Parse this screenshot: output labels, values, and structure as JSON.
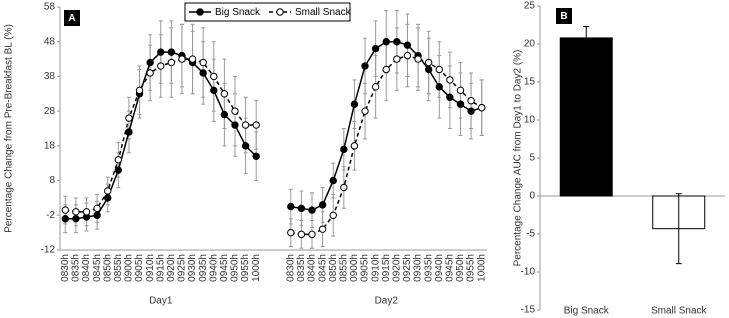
{
  "chart_data": [
    {
      "type": "line",
      "panel": "A",
      "ylabel": "Percentage Change from Pre-Breakfast BL  (%)",
      "ylim": [
        -12,
        58
      ],
      "yticks": [
        -12,
        -2,
        8,
        18,
        28,
        38,
        48,
        58
      ],
      "legend": "top",
      "groups": [
        {
          "label": "Day1",
          "categories": [
            "0830h",
            "0835h",
            "0840h",
            "0845h",
            "0850h",
            "0855h",
            "0900h",
            "0905h",
            "0910h",
            "0915h",
            "0920h",
            "0925h",
            "0930h",
            "0935h",
            "0940h",
            "0945h",
            "0950h",
            "0955h",
            "1000h"
          ]
        },
        {
          "label": "Day2",
          "categories": [
            "0830h",
            "0835h",
            "0840h",
            "0845h",
            "0850h",
            "0855h",
            "0900h",
            "0905h",
            "0910h",
            "0915h",
            "0920h",
            "0925h",
            "0930h",
            "0935h",
            "0940h",
            "0945h",
            "0950h",
            "0955h",
            "1000h"
          ]
        }
      ],
      "series": [
        {
          "name": "Big Snack",
          "color": "#000000",
          "marker_fill": "#000000",
          "dash": false,
          "values": [
            [
              -3,
              -3,
              -2.5,
              -2,
              3,
              11,
              22,
              33,
              42,
              45,
              45,
              44,
              42,
              39,
              34,
              27,
              24,
              18,
              15
            ],
            [
              0.5,
              0,
              -0.5,
              1,
              8,
              17,
              30,
              41,
              46,
              48,
              48,
              47,
              44,
              40,
              35,
              32,
              30,
              28,
              29
            ]
          ],
          "errors": [
            [
              4,
              4,
              4,
              4,
              4,
              5,
              6,
              7,
              8,
              9,
              9,
              9,
              9,
              9,
              9,
              9,
              9,
              8,
              7
            ],
            [
              5,
              5,
              5,
              5,
              5,
              6,
              7,
              8,
              8,
              9,
              9,
              9,
              9,
              9,
              9,
              9,
              9,
              8,
              8
            ]
          ]
        },
        {
          "name": "Small Snack",
          "color": "#000000",
          "marker_fill": "#ffffff",
          "dash": true,
          "values": [
            [
              -0.5,
              -1,
              -1,
              0,
              5,
              14,
              26,
              34,
              39,
              41,
              42,
              43,
              43,
              42,
              38,
              33,
              28,
              24,
              24
            ],
            [
              -7,
              -7.5,
              -7.5,
              -6,
              -2,
              6,
              18,
              28,
              35,
              40,
              43,
              44,
              43,
              42,
              40,
              37,
              34,
              31,
              29
            ]
          ],
          "errors": [
            [
              4,
              4,
              4,
              4,
              4,
              5,
              6,
              7,
              8,
              9,
              10,
              10,
              10,
              10,
              10,
              10,
              10,
              8,
              7
            ],
            [
              4,
              4,
              4,
              5,
              6,
              6,
              7,
              8,
              9,
              9,
              9,
              9,
              9,
              9,
              8,
              8,
              8,
              8,
              8
            ]
          ]
        }
      ]
    },
    {
      "type": "bar",
      "panel": "B",
      "ylabel": "Percentage Change AUC from Day1 to Day2 (%)",
      "ylim": [
        -15,
        25
      ],
      "yticks": [
        -15,
        -10,
        -5,
        0,
        5,
        10,
        15,
        20,
        25
      ],
      "categories": [
        "Big Snack",
        "Small Snack"
      ],
      "values": [
        20.8,
        -4.3
      ],
      "errors": [
        1.5,
        4.6
      ],
      "colors": [
        "#000000",
        "#ffffff"
      ]
    }
  ]
}
